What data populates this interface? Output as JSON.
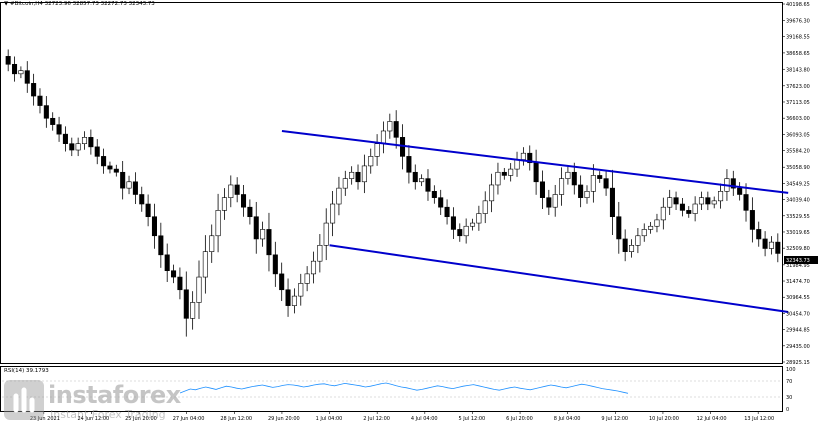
{
  "chart_header": {
    "symbol": "#Bitcoin,H4",
    "ohlc": "32723.96 32857.73 32272.73 32343.73"
  },
  "current_price_label": "32343.73",
  "rsi_label": "RSI(14) 39.1793",
  "logo": {
    "brand": "instaforex",
    "tagline": "Instant Forex Trading"
  },
  "colors": {
    "background": "#ffffff",
    "candle_up": "#ffffff",
    "candle_down": "#000000",
    "channel_lines": "#0000cc",
    "rsi_line": "#1e90ff",
    "axis": "#000000",
    "price_tag_bg": "#000000"
  },
  "chart_data": [
    {
      "type": "candlestick",
      "instrument": "#Bitcoin",
      "timeframe": "H4",
      "y_axis_ticks": [
        "40198.65",
        "39676.30",
        "39168.55",
        "38658.65",
        "38143.80",
        "37623.00",
        "37113.05",
        "36603.00",
        "36093.05",
        "35584.20",
        "35058.90",
        "34549.25",
        "34039.40",
        "33529.55",
        "33019.65",
        "32509.80",
        "31984.95",
        "31474.70",
        "30964.55",
        "30454.70",
        "29944.85",
        "29435.00",
        "28925.15"
      ],
      "y_range": [
        28925.15,
        40198.65
      ],
      "x_axis_ticks": [
        "23 Jun 2021",
        "24 Jun 12:00",
        "25 Jun 20:00",
        "27 Jun 04:00",
        "28 Jun 12:00",
        "29 Jun 20:00",
        "1 Jul 04:00",
        "2 Jul 12:00",
        "4 Jul 04:00",
        "5 Jul 12:00",
        "6 Jul 20:00",
        "8 Jul 04:00",
        "9 Jul 12:00",
        "10 Jul 20:00",
        "12 Jul 04:00",
        "13 Jul 12:00"
      ],
      "closes": [
        38300,
        38000,
        38100,
        37700,
        37300,
        37000,
        36600,
        36400,
        36100,
        35800,
        35600,
        35800,
        36000,
        35700,
        35400,
        35100,
        35000,
        34900,
        34400,
        34600,
        34200,
        33900,
        33500,
        32900,
        32300,
        31800,
        31600,
        31200,
        30300,
        30800,
        31600,
        32400,
        32900,
        33700,
        34100,
        34500,
        34200,
        33800,
        33500,
        32800,
        33100,
        32300,
        31700,
        31200,
        30700,
        31000,
        31400,
        31700,
        32100,
        32600,
        33300,
        33900,
        34400,
        34700,
        34900,
        34600,
        35100,
        35400,
        35800,
        36200,
        36500,
        36000,
        35400,
        34900,
        34600,
        34700,
        34300,
        34100,
        33800,
        33500,
        33100,
        32900,
        33200,
        33300,
        33600,
        34000,
        34500,
        34900,
        34800,
        35000,
        35300,
        35500,
        35200,
        34600,
        34100,
        33800,
        34200,
        34700,
        34900,
        34500,
        34100,
        34300,
        34800,
        34700,
        34400,
        33500,
        32800,
        32400,
        32600,
        32900,
        33100,
        33200,
        33400,
        33800,
        34100,
        33900,
        33700,
        33600,
        33900,
        34100,
        33900,
        34000,
        34300,
        34700,
        34400,
        34200,
        33700,
        33100,
        32800,
        32500,
        32700,
        32343.73
      ],
      "channel": {
        "upper": {
          "from": [
            "29 Jun 20:00",
            36200
          ],
          "to": [
            "13 Jul 12:00",
            34250
          ]
        },
        "lower": {
          "from": [
            "1 Jul 04:00",
            32600
          ],
          "to": [
            "13 Jul 12:00",
            30500
          ]
        }
      },
      "rsi": {
        "period": 14,
        "current": 39.1793,
        "levels": [
          "100",
          "70",
          "30",
          "0"
        ],
        "y_range": [
          0,
          100
        ],
        "values": [
          40,
          45,
          50,
          48,
          52,
          55,
          52,
          49,
          53,
          57,
          55,
          52,
          50,
          53,
          56,
          58,
          60,
          57,
          54,
          56,
          59,
          61,
          60,
          58,
          55,
          57,
          60,
          62,
          63,
          60,
          58,
          61,
          64,
          62,
          60,
          58,
          55,
          57,
          60,
          63,
          65,
          62,
          58,
          55,
          53,
          50,
          47,
          49,
          52,
          55,
          58,
          56,
          53,
          51,
          54,
          57,
          59,
          61,
          58,
          55,
          52,
          49,
          47,
          50,
          53,
          55,
          52,
          50,
          48,
          51,
          54,
          57,
          60,
          58,
          55,
          53,
          56,
          59,
          62,
          60,
          57,
          54,
          51,
          49,
          47,
          45,
          42,
          39.18
        ]
      }
    }
  ]
}
